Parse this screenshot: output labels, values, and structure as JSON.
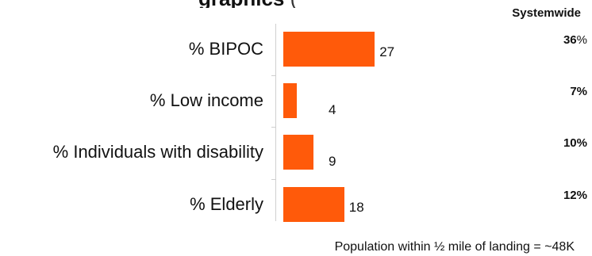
{
  "chart_data": {
    "type": "bar",
    "orientation": "horizontal",
    "title": "graphics",
    "title_suffix": "(",
    "categories": [
      "% BIPOC",
      "% Low income",
      "% Individuals with disability",
      "% Elderly"
    ],
    "values": [
      27,
      4,
      9,
      18
    ],
    "xlim": [
      0,
      60
    ],
    "bar_color": "#ff5a0a",
    "systemwide": {
      "label": "Systemwide",
      "values": [
        "36",
        "7%",
        "10%",
        "12%"
      ],
      "first_suffix": "%"
    },
    "footnote": "Population within ½ mile of landing = ~48K"
  }
}
